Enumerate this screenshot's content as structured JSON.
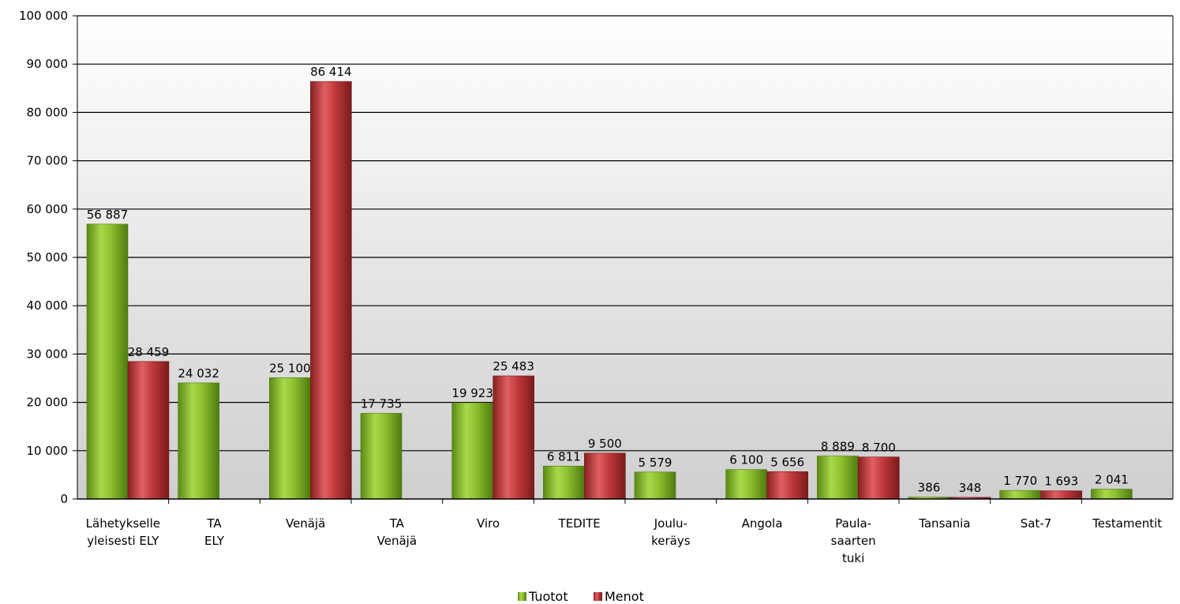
{
  "chart_data": {
    "type": "bar",
    "title": "",
    "xlabel": "",
    "ylabel": "",
    "ylim": [
      0,
      100000
    ],
    "y_ticks": [
      "0",
      "10 000",
      "20 000",
      "30 000",
      "40 000",
      "50 000",
      "60 000",
      "70 000",
      "80 000",
      "90 000",
      "100 000"
    ],
    "grid": true,
    "legend_position": "bottom",
    "categories": [
      "Lähetykselle yleisesti ELY",
      "TA ELY",
      "Venäjä",
      "TA Venäjä",
      "Viro",
      "TEDITE",
      "Joulu- keräys",
      "Angola",
      "Paula- saarten tuki",
      "Tansania",
      "Sat-7",
      "Testamentit"
    ],
    "category_lines": [
      [
        "Lähetykselle",
        "yleisesti ELY"
      ],
      [
        "TA",
        "ELY"
      ],
      [
        "Venäjä"
      ],
      [
        "TA",
        "Venäjä"
      ],
      [
        "Viro"
      ],
      [
        "TEDITE"
      ],
      [
        "Joulu-",
        "keräys"
      ],
      [
        "Angola"
      ],
      [
        "Paula-",
        "saarten",
        "tuki"
      ],
      [
        "Tansania"
      ],
      [
        "Sat-7"
      ],
      [
        "Testamentit"
      ]
    ],
    "series": [
      {
        "name": "Tuotot",
        "color": "#8bbf2e",
        "values": [
          56887,
          24032,
          25100,
          17735,
          19923,
          6811,
          5579,
          6100,
          8889,
          386,
          1770,
          2041
        ],
        "labels": [
          "56 887",
          "24 032",
          "25 100",
          "17 735",
          "19 923",
          "6 811",
          "5 579",
          "6 100",
          "8 889",
          "386",
          "1 770",
          "2 041"
        ]
      },
      {
        "name": "Menot",
        "color": "#c0393b",
        "values": [
          28459,
          null,
          86414,
          null,
          25483,
          9500,
          null,
          5656,
          8700,
          348,
          1693,
          null
        ],
        "labels": [
          "28 459",
          null,
          "86 414",
          null,
          "25 483",
          "9 500",
          null,
          "5 656",
          "8 700",
          "348",
          "1 693",
          null
        ]
      }
    ]
  }
}
